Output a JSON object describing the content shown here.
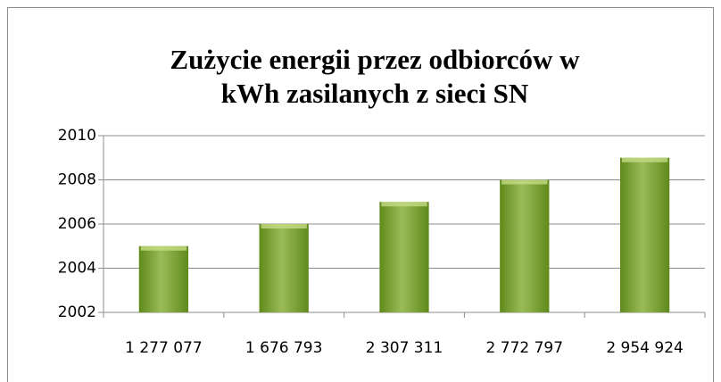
{
  "chart_data": {
    "type": "bar",
    "title": [
      "Zużycie energii przez odbiorców w",
      "kWh zasilanych z sieci SN"
    ],
    "categories": [
      "1 277 077",
      "1 676 793",
      "2 307 311",
      "2 772 797",
      "2 954 924"
    ],
    "values": [
      2005,
      2006,
      2007,
      2008,
      2009
    ],
    "color": "#9bbb59",
    "ylim": [
      2002,
      2010
    ],
    "yticks": [
      2002,
      2004,
      2006,
      2008,
      2010
    ],
    "grid": true
  }
}
